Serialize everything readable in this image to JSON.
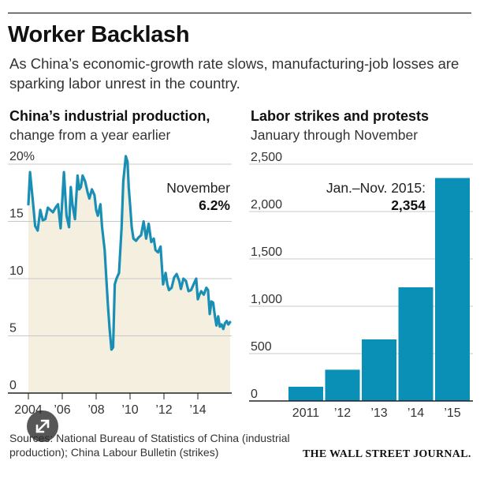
{
  "headline": "Worker Backlash",
  "dek": "As China’s economic-growth rate slows, manufacturing-job losses are sparking labor unrest in the country.",
  "left_panel": {
    "title": "China’s industrial production,",
    "subtitle": "change from a year earlier"
  },
  "right_panel": {
    "title": "Labor strikes and protests",
    "subtitle": "January through November"
  },
  "source": "Sources: National Bureau of Statistics of China (industrial production); China Labour Bulletin (strikes)",
  "masthead": "THE WALL STREET JOURNAL.",
  "colors": {
    "line": "#1a8fb5",
    "fill": "#f5efdf",
    "bar": "#0a8fb7",
    "grid": "#c8c8c8",
    "axis": "#333333"
  },
  "icons": {
    "expand": "expand-icon"
  },
  "chart_data": [
    {
      "type": "area",
      "title": "China’s industrial production,",
      "subtitle": "change from a year earlier",
      "ylim": [
        0,
        20
      ],
      "yticks": [
        0,
        5,
        10,
        15,
        20
      ],
      "ytick_labels": [
        "0",
        "5",
        "10",
        "15",
        "20%"
      ],
      "xlim": [
        2004.0,
        2016.0
      ],
      "xticks": [
        2004,
        2006,
        2008,
        2010,
        2012,
        2014
      ],
      "xtick_labels": [
        "2004",
        "’06",
        "’08",
        "’10",
        "’12",
        "’14"
      ],
      "annotation": {
        "label": "November",
        "value": "6.2%"
      },
      "series": [
        {
          "name": "Industrial production, % change",
          "x": [
            2004.0,
            2004.1,
            2004.25,
            2004.4,
            2004.55,
            2004.7,
            2004.85,
            2005.0,
            2005.15,
            2005.3,
            2005.45,
            2005.6,
            2005.75,
            2005.9,
            2006.0,
            2006.1,
            2006.25,
            2006.4,
            2006.5,
            2006.6,
            2006.75,
            2006.9,
            2007.0,
            2007.1,
            2007.2,
            2007.35,
            2007.5,
            2007.6,
            2007.75,
            2007.9,
            2008.0,
            2008.1,
            2008.25,
            2008.35,
            2008.5,
            2008.6,
            2008.7,
            2008.8,
            2008.9,
            2009.0,
            2009.1,
            2009.2,
            2009.35,
            2009.5,
            2009.6,
            2009.75,
            2009.85,
            2009.92,
            2010.0,
            2010.1,
            2010.2,
            2010.35,
            2010.5,
            2010.65,
            2010.8,
            2010.95,
            2011.1,
            2011.25,
            2011.4,
            2011.5,
            2011.65,
            2011.8,
            2011.95,
            2012.1,
            2012.2,
            2012.3,
            2012.45,
            2012.6,
            2012.75,
            2012.9,
            2013.0,
            2013.15,
            2013.3,
            2013.45,
            2013.6,
            2013.75,
            2013.9,
            2014.0,
            2014.1,
            2014.2,
            2014.35,
            2014.5,
            2014.6,
            2014.7,
            2014.8,
            2014.9,
            2015.0,
            2015.1,
            2015.2,
            2015.3,
            2015.4,
            2015.5,
            2015.6,
            2015.7,
            2015.8,
            2015.9
          ],
          "values": [
            16.5,
            19.3,
            17.0,
            14.6,
            14.2,
            16.0,
            15.1,
            15.2,
            16.2,
            16.0,
            15.8,
            16.2,
            16.5,
            14.4,
            16.8,
            19.3,
            15.5,
            14.5,
            18.0,
            16.5,
            15.2,
            19.0,
            17.8,
            18.0,
            19.0,
            18.5,
            17.5,
            17.0,
            17.8,
            17.3,
            16.0,
            15.5,
            16.5,
            14.5,
            12.5,
            10.0,
            7.5,
            5.5,
            3.8,
            4.0,
            9.5,
            10.0,
            10.5,
            14.5,
            18.5,
            20.7,
            20.2,
            18.0,
            16.5,
            14.5,
            13.5,
            13.3,
            13.6,
            13.8,
            15.0,
            13.5,
            14.8,
            13.2,
            13.5,
            12.5,
            12.3,
            12.8,
            9.5,
            10.5,
            9.5,
            9.0,
            9.2,
            10.1,
            10.4,
            9.8,
            9.1,
            10.0,
            9.8,
            8.9,
            9.0,
            9.5,
            10.0,
            8.2,
            8.6,
            8.9,
            8.6,
            9.2,
            9.0,
            6.9,
            8.0,
            7.9,
            6.8,
            5.9,
            6.7,
            5.8,
            6.0,
            5.6,
            6.1,
            6.3,
            6.0,
            6.2
          ]
        }
      ]
    },
    {
      "type": "bar",
      "title": "Labor strikes and protests",
      "subtitle": "January through November",
      "categories": [
        "2011",
        "2012",
        "2013",
        "2014",
        "2015"
      ],
      "category_labels": [
        "2011",
        "’12",
        "’13",
        "’14",
        "’15"
      ],
      "values": [
        150,
        330,
        650,
        1200,
        2354
      ],
      "ylim": [
        0,
        2500
      ],
      "yticks": [
        0,
        500,
        1000,
        1500,
        2000,
        2500
      ],
      "ytick_labels": [
        "0",
        "500",
        "1,000",
        "1,500",
        "2,000",
        "2,500"
      ],
      "annotation": {
        "label": "Jan.–Nov. 2015:",
        "value": "2,354"
      }
    }
  ]
}
